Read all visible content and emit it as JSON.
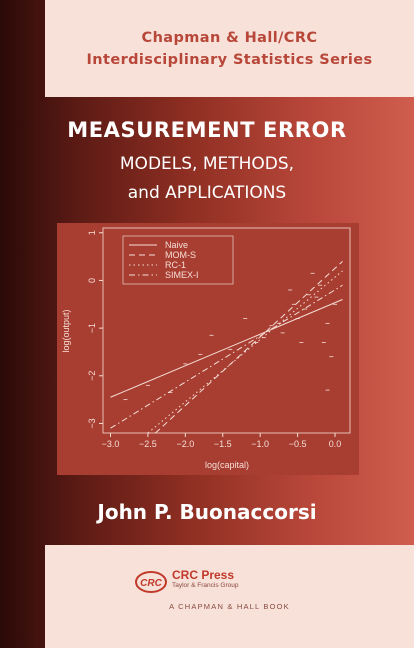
{
  "series": {
    "line1": "Chapman & Hall/CRC",
    "line2": "Interdisciplinary Statistics Series"
  },
  "title": "MEASUREMENT ERROR",
  "subtitle_line1": "MODELS, METHODS,",
  "subtitle_line2": "and APPLICATIONS",
  "author": "John P. Buonaccorsi",
  "publisher": {
    "name": "CRC Press",
    "tagline": "Taylor & Francis Group",
    "book_line": "A CHAPMAN & HALL BOOK",
    "logo_text": "CRC"
  },
  "colors": {
    "accent": "#b8473a",
    "band": "#f7e1d8",
    "plot_bg": "#a83e32"
  },
  "chart_data": {
    "type": "scatter",
    "title": "",
    "xlabel": "log(capital)",
    "ylabel": "log(output)",
    "xlim": [
      -3.1,
      0.2
    ],
    "ylim": [
      -3.2,
      1.1
    ],
    "xticks": [
      -3.0,
      -2.5,
      -2.0,
      -1.5,
      -1.0,
      -0.5,
      0.0
    ],
    "xtick_labels": [
      "−3.0",
      "−2.5",
      "−2.0",
      "−1.5",
      "−1.0",
      "−0.5",
      "0.0"
    ],
    "yticks": [
      1,
      0,
      -1,
      -2,
      -3
    ],
    "ytick_labels": [
      "1",
      "0",
      "−1",
      "−2",
      "−3"
    ],
    "legend_position": "top-left",
    "points": [
      {
        "x": -2.5,
        "y": -2.2
      },
      {
        "x": -2.2,
        "y": -2.35
      },
      {
        "x": -2.0,
        "y": -1.75
      },
      {
        "x": -1.65,
        "y": -1.15
      },
      {
        "x": -1.4,
        "y": -1.45
      },
      {
        "x": -1.2,
        "y": -0.8
      },
      {
        "x": -1.05,
        "y": -1.3
      },
      {
        "x": -0.95,
        "y": -1.2
      },
      {
        "x": -0.75,
        "y": -0.9
      },
      {
        "x": -0.7,
        "y": -1.1
      },
      {
        "x": -0.6,
        "y": -0.2
      },
      {
        "x": -0.55,
        "y": -0.5
      },
      {
        "x": -0.45,
        "y": -1.3
      },
      {
        "x": -0.4,
        "y": -0.6
      },
      {
        "x": -0.35,
        "y": -0.3
      },
      {
        "x": -0.3,
        "y": 0.15
      },
      {
        "x": -0.25,
        "y": -0.35
      },
      {
        "x": -0.2,
        "y": -0.1
      },
      {
        "x": -0.15,
        "y": -1.3
      },
      {
        "x": -0.1,
        "y": -2.3
      },
      {
        "x": -0.05,
        "y": -1.6
      },
      {
        "x": 0.0,
        "y": -0.5
      },
      {
        "x": -0.5,
        "y": -0.8
      },
      {
        "x": -0.1,
        "y": -0.9
      },
      {
        "x": -2.8,
        "y": -2.5
      },
      {
        "x": -1.8,
        "y": -1.55
      },
      {
        "x": -0.85,
        "y": -0.95
      }
    ],
    "series": [
      {
        "name": "Naive",
        "style": "solid",
        "line": [
          [
            -3.0,
            -2.45
          ],
          [
            0.1,
            -0.4
          ]
        ]
      },
      {
        "name": "MOM-S",
        "style": "dashed",
        "line": [
          [
            -2.4,
            -3.2
          ],
          [
            0.1,
            0.4
          ]
        ]
      },
      {
        "name": "RC-1",
        "style": "dotted",
        "line": [
          [
            -2.5,
            -3.2
          ],
          [
            0.1,
            0.2
          ]
        ]
      },
      {
        "name": "SIMEX-I",
        "style": "dashdot",
        "line": [
          [
            -3.0,
            -3.1
          ],
          [
            0.1,
            -0.1
          ]
        ]
      }
    ]
  }
}
